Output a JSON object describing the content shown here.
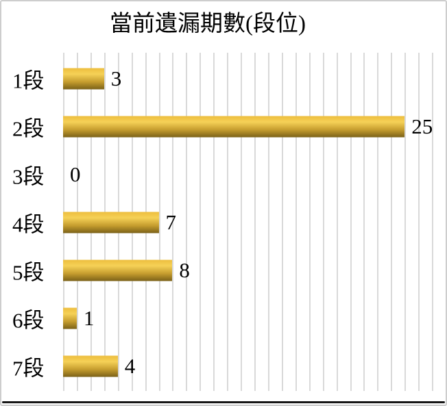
{
  "chart_data": {
    "type": "bar",
    "orientation": "horizontal",
    "title": "當前遺漏期數(段位)",
    "categories": [
      "1段",
      "2段",
      "3段",
      "4段",
      "5段",
      "6段",
      "7段"
    ],
    "values": [
      3,
      25,
      0,
      7,
      8,
      1,
      4
    ],
    "xlabel": "",
    "ylabel": "",
    "xlim": [
      0,
      28
    ],
    "gridline_step": 1,
    "grid": "vertical-only",
    "legend": "none",
    "data_labels": "outside-end",
    "colors": {
      "bar_gradient": [
        "#EDBE3E",
        "#F5D157",
        "#C79E2F",
        "#7A6118"
      ],
      "gridline": "#D9D9D9",
      "text": "#000000",
      "background": "#FFFFFF",
      "frame_border": "#CDCDCD"
    }
  }
}
